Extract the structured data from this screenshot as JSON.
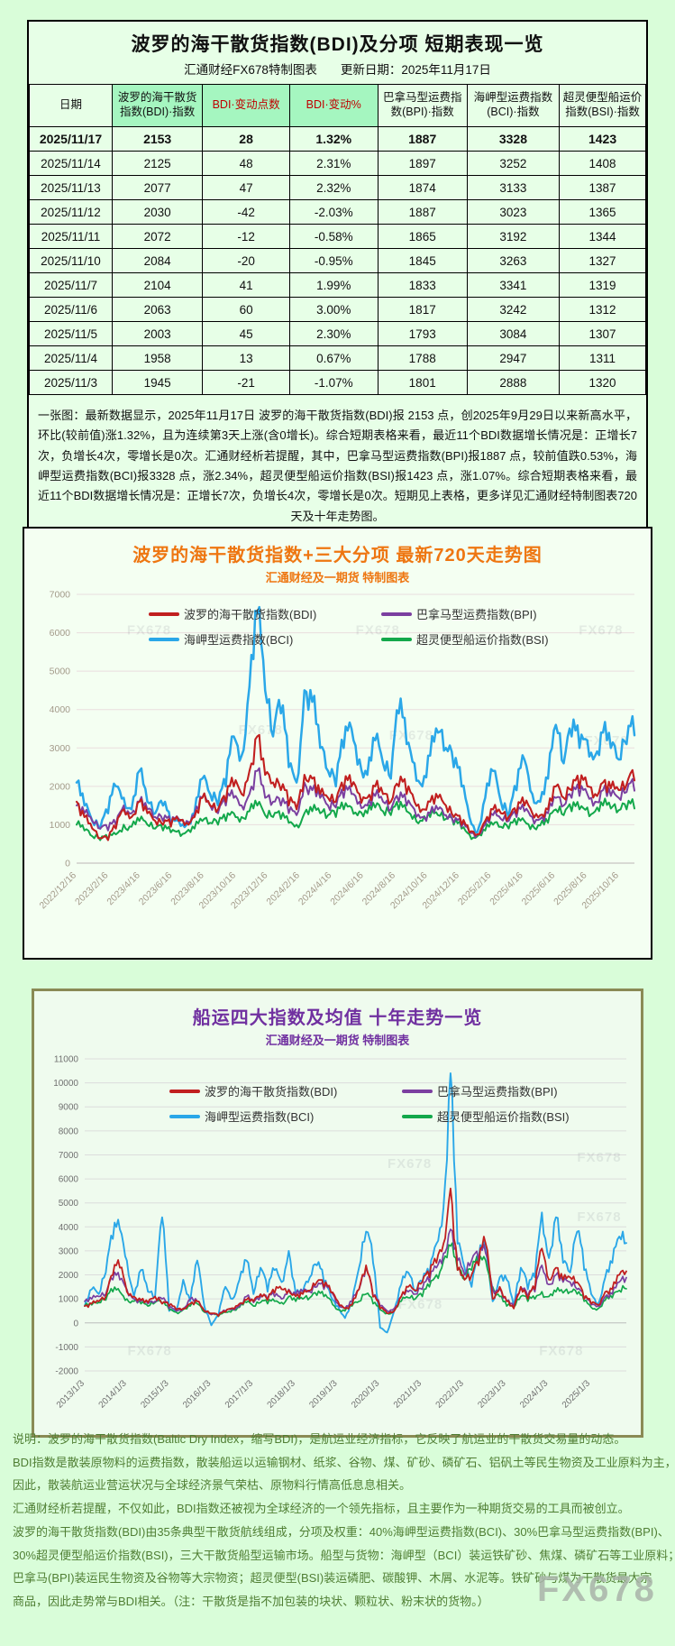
{
  "page": {
    "watermark": "FX678"
  },
  "table_panel": {
    "title": "波罗的海干散货指数(BDI)及分项 短期表现一览",
    "subtitle_left": "汇通财经FX678特制图表",
    "subtitle_right": "更新日期：2025年11月17日",
    "columns": [
      {
        "label": "日期",
        "green": false,
        "red": false
      },
      {
        "label": "波罗的海干散货指数(BDI)·指数",
        "green": true,
        "red": false
      },
      {
        "label": "BDI·变动点数",
        "green": true,
        "red": true
      },
      {
        "label": "BDI·变动%",
        "green": true,
        "red": true
      },
      {
        "label": "巴拿马型运费指数(BPI)·指数",
        "green": false,
        "red": false
      },
      {
        "label": "海岬型运费指数(BCI)·指数",
        "green": false,
        "red": false
      },
      {
        "label": "超灵便型船运价指数(BSI)·指数",
        "green": false,
        "red": false
      }
    ],
    "rows": [
      [
        "2025/11/17",
        "2153",
        "28",
        "1.32%",
        "1887",
        "3328",
        "1423"
      ],
      [
        "2025/11/14",
        "2125",
        "48",
        "2.31%",
        "1897",
        "3252",
        "1408"
      ],
      [
        "2025/11/13",
        "2077",
        "47",
        "2.32%",
        "1874",
        "3133",
        "1387"
      ],
      [
        "2025/11/12",
        "2030",
        "-42",
        "-2.03%",
        "1887",
        "3023",
        "1365"
      ],
      [
        "2025/11/11",
        "2072",
        "-12",
        "-0.58%",
        "1865",
        "3192",
        "1344"
      ],
      [
        "2025/11/10",
        "2084",
        "-20",
        "-0.95%",
        "1845",
        "3263",
        "1327"
      ],
      [
        "2025/11/7",
        "2104",
        "41",
        "1.99%",
        "1833",
        "3341",
        "1319"
      ],
      [
        "2025/11/6",
        "2063",
        "60",
        "3.00%",
        "1817",
        "3242",
        "1312"
      ],
      [
        "2025/11/5",
        "2003",
        "45",
        "2.30%",
        "1793",
        "3084",
        "1307"
      ],
      [
        "2025/11/4",
        "1958",
        "13",
        "0.67%",
        "1788",
        "2947",
        "1311"
      ],
      [
        "2025/11/3",
        "1945",
        "-21",
        "-1.07%",
        "1801",
        "2888",
        "1320"
      ]
    ],
    "note": "一张图：最新数据显示，2025年11月17日 波罗的海干散货指数(BDI)报 2153 点，创2025年9月29日以来新高水平，环比(较前值)涨1.32%，且为连续第3天上涨(含0增长)。综合短期表格来看，最近11个BDI数据增长情况是：正增长7次，负增长4次，零增长是0次。汇通财经析若提醒，其中，巴拿马型运费指数(BPI)报1887 点，较前值跌0.53%，海岬型运费指数(BCI)报3328 点，涨2.34%，超灵便型船运价指数(BSI)报1423 点，涨1.07%。综合短期表格来看，最近11个BDI数据增长情况是：正增长7次，负增长4次，零增长是0次。短期见上表格，更多详见汇通财经特制图表720天及十年走势图。"
  },
  "chart720": {
    "title": "波罗的海干散货指数+三大分项  最新720天走势图",
    "subtitle": "汇通财经及一期货  特制图表"
  },
  "chart10y": {
    "title": "船运四大指数及均值 十年走势一览",
    "subtitle": "汇通财经及一期货 特制图表"
  },
  "footer_lines": [
    "说明：波罗的海干散货指数(Baltic Dry Index，缩写BDI)，是航运业经济指标，它反映了航运业的干散货交易量的动态。",
    "BDI指数是散装原物料的运费指数，散装船运以运输钢材、纸浆、谷物、煤、矿砂、磷矿石、铝矾土等民生物资及工业原料为主，",
    "因此，散装航运业营运状况与全球经济景气荣枯、原物料行情高低息息相关。",
    "汇通财经析若提醒，不仅如此，BDI指数还被视为全球经济的一个领先指标，且主要作为一种期货交易的工具而被创立。",
    "波罗的海干散货指数(BDI)由35条典型干散货航线组成，分项及权重：40%海岬型运费指数(BCI)、30%巴拿马型运费指数(BPI)、",
    "30%超灵便型船运价指数(BSI)，三大干散货船型运输市场。船型与货物：海岬型（BCI）装运铁矿砂、焦煤、磷矿石等工业原料；",
    "巴拿马(BPI)装运民生物资及谷物等大宗物资；超灵便型(BSI)装运磷肥、碳酸钾、木屑、水泥等。铁矿砂与煤为干散货最大宗",
    "商品，因此走势常与BDI相关。（注：干散货是指不加包装的块状、颗粒状、粉末状的货物。）"
  ],
  "chart_data": [
    {
      "id": "chart720",
      "type": "line",
      "title": "波罗的海干散货指数+三大分项 最新720天走势图",
      "ylim": [
        0,
        7000
      ],
      "grid": true,
      "legend_position": "top-inside",
      "x_labels": [
        "2022/12/16",
        "2023/2/16",
        "2023/4/16",
        "2023/6/16",
        "2023/8/16",
        "2023/10/16",
        "2023/12/16",
        "2024/2/16",
        "2024/4/16",
        "2024/6/16",
        "2024/8/16",
        "2024/10/16",
        "2024/12/16",
        "2025/2/16",
        "2025/4/16",
        "2025/6/16",
        "2025/8/16",
        "2025/10/16"
      ],
      "series": [
        {
          "name": "波罗的海干散货指数(BDI)",
          "color": "#c11f1f",
          "width": 2.1,
          "values": [
            1600,
            1200,
            900,
            650,
            600,
            900,
            1400,
            1200,
            1600,
            1300,
            1100,
            1000,
            950,
            1100,
            1050,
            1200,
            1700,
            1500,
            1400,
            1600,
            2000,
            1800,
            2400,
            3300,
            2300,
            2100,
            1900,
            1500,
            1400,
            2300,
            2200,
            1800,
            1700,
            1600,
            1900,
            2000,
            1800,
            1700,
            2000,
            1800,
            1600,
            2000,
            1800,
            1600,
            1400,
            1600,
            1700,
            1500,
            1200,
            1000,
            800,
            750,
            1100,
            1400,
            1300,
            1200,
            1300,
            1500,
            1300,
            1250,
            1400,
            2000,
            1700,
            1900,
            1950,
            2000,
            1800,
            2100,
            1950,
            1900,
            2050,
            2153
          ]
        },
        {
          "name": "巴拿马型运费指数(BPI)",
          "color": "#7b3fa0",
          "width": 2,
          "values": [
            1500,
            1300,
            1100,
            900,
            850,
            1000,
            1500,
            1300,
            1600,
            1400,
            1200,
            1100,
            1000,
            1150,
            1100,
            1250,
            1700,
            1500,
            1300,
            1500,
            1700,
            1500,
            1800,
            2400,
            1700,
            1600,
            1500,
            1300,
            1250,
            2100,
            1900,
            1700,
            1500,
            1450,
            1700,
            1800,
            1600,
            1500,
            1750,
            1600,
            1400,
            1600,
            1500,
            1400,
            1200,
            1300,
            1400,
            1250,
            1050,
            950,
            800,
            750,
            1000,
            1250,
            1150,
            1100,
            1200,
            1350,
            1200,
            1150,
            1300,
            1700,
            1500,
            1700,
            1750,
            1800,
            1600,
            1900,
            1750,
            1700,
            1850,
            1887
          ]
        },
        {
          "name": "海岬型运费指数(BCI)",
          "color": "#2aa7e8",
          "width": 2.5,
          "values": [
            2100,
            1500,
            1100,
            900,
            1300,
            2000,
            1700,
            1400,
            2400,
            1600,
            1300,
            1500,
            1000,
            1100,
            1000,
            1300,
            2200,
            1800,
            1500,
            2000,
            3300,
            2800,
            4600,
            6500,
            4500,
            3300,
            3900,
            2500,
            2100,
            4500,
            4200,
            3000,
            2400,
            2000,
            3000,
            3500,
            2700,
            2300,
            3200,
            2600,
            2200,
            3900,
            3100,
            2600,
            2000,
            2800,
            3400,
            3000,
            2500,
            2000,
            1200,
            800,
            1700,
            2400,
            1600,
            1200,
            1900,
            2700,
            1800,
            1600,
            2200,
            3600,
            2600,
            3300,
            3000,
            3200,
            2800,
            3400,
            3000,
            2700,
            3100,
            3328
          ]
        },
        {
          "name": "超灵便型船运价指数(BSI)",
          "color": "#13a84b",
          "width": 2,
          "values": [
            1000,
            850,
            700,
            600,
            620,
            750,
            1000,
            950,
            1100,
            1000,
            900,
            850,
            800,
            850,
            820,
            900,
            1100,
            1050,
            1000,
            1100,
            1300,
            1200,
            1350,
            1500,
            1250,
            1200,
            1150,
            1050,
            1000,
            1300,
            1350,
            1300,
            1250,
            1200,
            1400,
            1450,
            1350,
            1300,
            1450,
            1350,
            1250,
            1400,
            1350,
            1250,
            1100,
            1200,
            1250,
            1150,
            1000,
            900,
            750,
            700,
            850,
            1000,
            950,
            900,
            1000,
            1100,
            1000,
            980,
            1050,
            1400,
            1250,
            1350,
            1400,
            1450,
            1350,
            1500,
            1420,
            1380,
            1400,
            1423
          ]
        }
      ]
    },
    {
      "id": "chart10y",
      "type": "line",
      "title": "船运四大指数及均值 十年走势一览",
      "ylim": [
        -2000,
        11000
      ],
      "grid": true,
      "legend_position": "top-inside",
      "x_labels": [
        "2013/1/3",
        "2014/1/3",
        "2015/1/3",
        "2016/1/3",
        "2017/1/3",
        "2018/1/3",
        "2019/1/3",
        "2020/1/3",
        "2021/1/3",
        "2022/1/3",
        "2023/1/3",
        "2024/1/3",
        "2025/1/3"
      ],
      "series": [
        {
          "name": "波罗的海干散货指数(BDI)",
          "color": "#c11f1f",
          "width": 1.8,
          "values": [
            700,
            800,
            900,
            1100,
            2000,
            2300,
            1300,
            1100,
            950,
            850,
            1100,
            800,
            700,
            560,
            600,
            800,
            900,
            500,
            400,
            290,
            450,
            620,
            800,
            960,
            900,
            1200,
            950,
            1250,
            1400,
            1370,
            1100,
            1200,
            1350,
            1700,
            1500,
            1270,
            900,
            600,
            750,
            1400,
            2400,
            1090,
            600,
            400,
            500,
            1100,
            1500,
            1350,
            1700,
            1900,
            2500,
            3300,
            5600,
            2200,
            1800,
            2000,
            2400,
            3300,
            1000,
            1500,
            900,
            600,
            1500,
            1000,
            1400,
            3100,
            1800,
            2300,
            1800,
            1900,
            1700,
            1000,
            800,
            750,
            1300,
            1400,
            2000,
            2153
          ]
        },
        {
          "name": "巴拿马型运费指数(BPI)",
          "color": "#7b3fa0",
          "width": 1.7,
          "values": [
            900,
            1000,
            1100,
            1200,
            1800,
            1800,
            1400,
            1000,
            900,
            800,
            900,
            1000,
            600,
            500,
            600,
            1000,
            900,
            500,
            350,
            300,
            500,
            600,
            700,
            1100,
            850,
            1100,
            1000,
            1100,
            1000,
            1400,
            1200,
            1300,
            1300,
            1500,
            1400,
            1300,
            800,
            600,
            900,
            1400,
            2300,
            1100,
            700,
            500,
            600,
            1100,
            1300,
            1200,
            1400,
            1700,
            2300,
            2900,
            3900,
            2600,
            2000,
            2600,
            2600,
            2900,
            1400,
            1400,
            900,
            700,
            1500,
            1100,
            1300,
            2400,
            1600,
            2000,
            1700,
            1700,
            1400,
            1000,
            750,
            700,
            1100,
            1200,
            1700,
            1887
          ]
        },
        {
          "name": "海岬型运费指数(BCI)",
          "color": "#2aa7e8",
          "width": 1.9,
          "values": [
            700,
            1400,
            1200,
            2100,
            3500,
            3900,
            2600,
            1100,
            2200,
            1300,
            1100,
            4400,
            500,
            500,
            1800,
            900,
            2600,
            700,
            -100,
            300,
            1500,
            1000,
            1800,
            2600,
            1200,
            2300,
            1300,
            2200,
            1700,
            3000,
            1200,
            1300,
            1900,
            2400,
            1700,
            1100,
            700,
            200,
            800,
            2300,
            3800,
            2500,
            -200,
            -400,
            500,
            1600,
            2100,
            1300,
            1700,
            2000,
            3300,
            4800,
            10400,
            3300,
            2300,
            1500,
            2700,
            3100,
            900,
            1900,
            1800,
            700,
            2300,
            1400,
            1900,
            4600,
            2700,
            4400,
            2500,
            2100,
            3800,
            2200,
            1200,
            800,
            1900,
            2500,
            3600,
            3328
          ]
        },
        {
          "name": "超灵便型船运价指数(BSI)",
          "color": "#13a84b",
          "width": 1.7,
          "values": [
            700,
            750,
            850,
            950,
            1300,
            1300,
            1000,
            900,
            800,
            700,
            850,
            800,
            550,
            450,
            550,
            700,
            800,
            450,
            350,
            270,
            450,
            550,
            650,
            850,
            700,
            850,
            800,
            900,
            850,
            1100,
            900,
            1000,
            1050,
            1150,
            1100,
            950,
            550,
            500,
            700,
            900,
            1200,
            800,
            550,
            400,
            500,
            900,
            1050,
            1000,
            1100,
            1500,
            2000,
            2600,
            3200,
            2200,
            1800,
            2200,
            2400,
            2600,
            1500,
            1100,
            700,
            650,
            1100,
            900,
            1000,
            1300,
            1100,
            1300,
            1250,
            1300,
            1200,
            900,
            650,
            600,
            950,
            1050,
            1350,
            1423
          ]
        }
      ]
    }
  ]
}
